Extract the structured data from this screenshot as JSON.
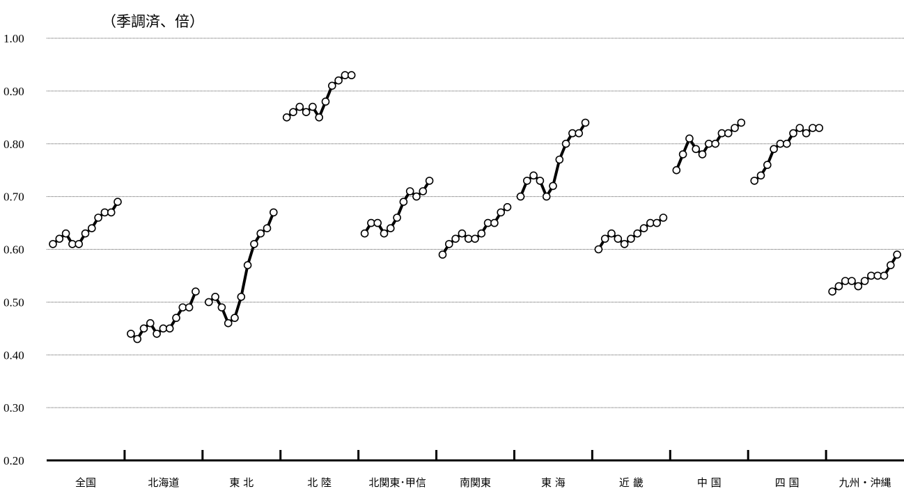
{
  "chart_data": {
    "type": "line",
    "title": "",
    "unit_label": "（季調済、倍）",
    "xlabel": "",
    "ylabel": "",
    "ylim": [
      0.2,
      1.0
    ],
    "yticks": [
      "1.00",
      "0.90",
      "0.80",
      "0.70",
      "0.60",
      "0.50",
      "0.40",
      "0.30",
      "0.20"
    ],
    "grid": true,
    "marker": "open-circle",
    "categories": [
      "全国",
      "北海道",
      "東 北",
      "北 陸",
      "北関東･甲信",
      "南関東",
      "東 海",
      "近 畿",
      "中 国",
      "四 国",
      "九州・沖縄"
    ],
    "series": [
      {
        "values": [
          0.61,
          0.62,
          0.63,
          0.61,
          0.61,
          0.63,
          0.64,
          0.66,
          0.67,
          0.67,
          0.69
        ]
      },
      {
        "values": [
          0.44,
          0.43,
          0.45,
          0.46,
          0.44,
          0.45,
          0.45,
          0.47,
          0.49,
          0.49,
          0.52
        ]
      },
      {
        "values": [
          0.5,
          0.51,
          0.49,
          0.46,
          0.47,
          0.51,
          0.57,
          0.61,
          0.63,
          0.64,
          0.67
        ]
      },
      {
        "values": [
          0.85,
          0.86,
          0.87,
          0.86,
          0.87,
          0.85,
          0.88,
          0.91,
          0.92,
          0.93,
          0.93
        ]
      },
      {
        "values": [
          0.63,
          0.65,
          0.65,
          0.63,
          0.64,
          0.66,
          0.69,
          0.71,
          0.7,
          0.71,
          0.73
        ]
      },
      {
        "values": [
          0.59,
          0.61,
          0.62,
          0.63,
          0.62,
          0.62,
          0.63,
          0.65,
          0.65,
          0.67,
          0.68
        ]
      },
      {
        "values": [
          0.7,
          0.73,
          0.74,
          0.73,
          0.7,
          0.72,
          0.77,
          0.8,
          0.82,
          0.82,
          0.84
        ]
      },
      {
        "values": [
          0.6,
          0.62,
          0.63,
          0.62,
          0.61,
          0.62,
          0.63,
          0.64,
          0.65,
          0.65,
          0.66
        ]
      },
      {
        "values": [
          0.75,
          0.78,
          0.81,
          0.79,
          0.78,
          0.8,
          0.8,
          0.82,
          0.82,
          0.83,
          0.84
        ]
      },
      {
        "values": [
          0.73,
          0.74,
          0.76,
          0.79,
          0.8,
          0.8,
          0.82,
          0.83,
          0.82,
          0.83,
          0.83
        ]
      },
      {
        "values": [
          0.52,
          0.53,
          0.54,
          0.54,
          0.53,
          0.54,
          0.55,
          0.55,
          0.55,
          0.57,
          0.59
        ]
      }
    ]
  }
}
